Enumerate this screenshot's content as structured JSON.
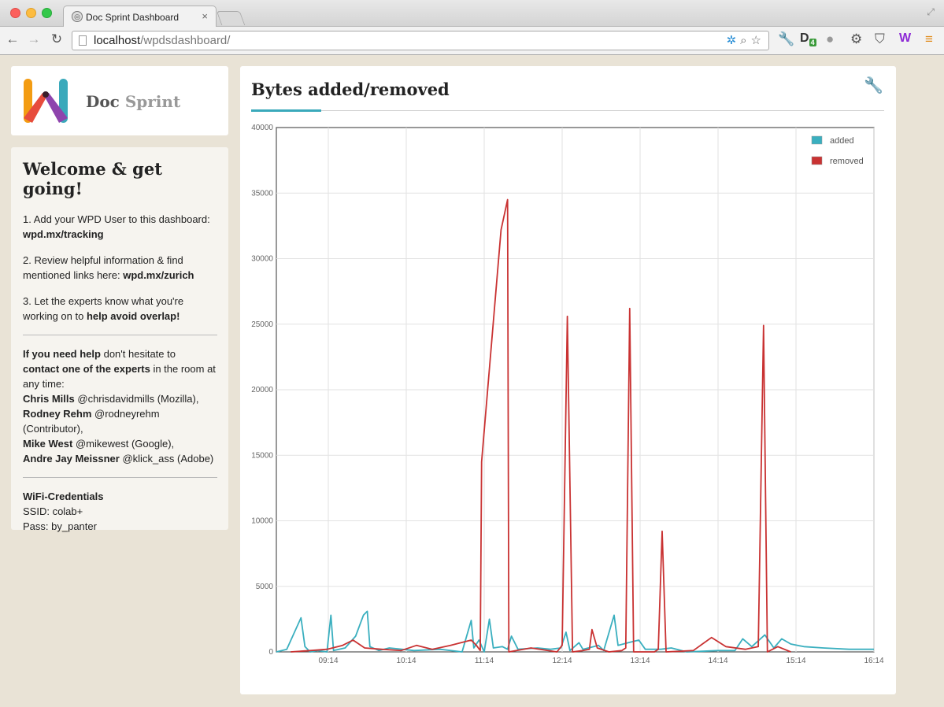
{
  "browser": {
    "tab_title": "Doc Sprint Dashboard",
    "close_glyph": "×",
    "url_host": "localhost",
    "url_path": "/wpdsdashboard/",
    "extension_badge": "4"
  },
  "logo": {
    "word1": "Doc",
    "word2": "Sprint",
    "colors": [
      "#f39c12",
      "#e74c3c",
      "#8e44ad",
      "#3aa9bb"
    ]
  },
  "welcome": {
    "title": "Welcome & get going!",
    "step1_text": "1. Add your WPD User to this dashboard:",
    "step1_link": "wpd.mx/tracking",
    "step2_text": "2. Review helpful information & find mentioned links here:",
    "step2_link": "wpd.mx/zurich",
    "step3_text": "3. Let the experts know what you're working on to",
    "step3_bold": "help avoid overlap!",
    "help_bold1": "If you need help",
    "help_text1": "don't hesitate to",
    "help_bold2": "contact one of the experts",
    "help_text2": "in the room at any time:",
    "experts": [
      {
        "name": "Chris Mills",
        "detail": "@chrisdavidmills (Mozilla),"
      },
      {
        "name": "Rodney Rehm",
        "detail": "@rodneyrehm (Contributor),"
      },
      {
        "name": "Mike West",
        "detail": "@mikewest (Google),"
      },
      {
        "name": "Andre Jay Meissner",
        "detail": "@klick_ass (Adobe)"
      }
    ],
    "wifi_title": "WiFi-Credentials",
    "wifi_ssid": "SSID: colab+",
    "wifi_pass": "Pass: by_panter"
  },
  "chart_panel": {
    "title": "Bytes added/removed"
  },
  "chart_data": {
    "type": "line",
    "title": "Bytes added/removed",
    "xlabel": "",
    "ylabel": "",
    "ylim": [
      0,
      40000
    ],
    "xlim": [
      "08:34",
      "16:14"
    ],
    "yticks": [
      0,
      5000,
      10000,
      15000,
      20000,
      25000,
      30000,
      35000,
      40000
    ],
    "xticks": [
      "09:14",
      "10:14",
      "11:14",
      "12:14",
      "13:14",
      "14:14",
      "15:14",
      "16:14"
    ],
    "grid": true,
    "legend_position": "top-right",
    "series": [
      {
        "name": "added",
        "color": "#3aafbf",
        "points": [
          [
            "08:34",
            0
          ],
          [
            "08:42",
            200
          ],
          [
            "08:53",
            2600
          ],
          [
            "08:56",
            400
          ],
          [
            "09:00",
            0
          ],
          [
            "09:06",
            100
          ],
          [
            "09:13",
            0
          ],
          [
            "09:16",
            2800
          ],
          [
            "09:18",
            100
          ],
          [
            "09:27",
            300
          ],
          [
            "09:35",
            1200
          ],
          [
            "09:41",
            2800
          ],
          [
            "09:44",
            3100
          ],
          [
            "09:46",
            400
          ],
          [
            "09:53",
            100
          ],
          [
            "10:01",
            300
          ],
          [
            "10:20",
            100
          ],
          [
            "10:40",
            200
          ],
          [
            "10:57",
            0
          ],
          [
            "11:04",
            2400
          ],
          [
            "11:06",
            300
          ],
          [
            "11:10",
            900
          ],
          [
            "11:14",
            0
          ],
          [
            "11:18",
            2500
          ],
          [
            "11:21",
            300
          ],
          [
            "11:28",
            400
          ],
          [
            "11:32",
            200
          ],
          [
            "11:35",
            1200
          ],
          [
            "11:40",
            200
          ],
          [
            "11:55",
            300
          ],
          [
            "12:05",
            200
          ],
          [
            "12:13",
            300
          ],
          [
            "12:17",
            1500
          ],
          [
            "12:20",
            100
          ],
          [
            "12:27",
            700
          ],
          [
            "12:30",
            200
          ],
          [
            "12:42",
            500
          ],
          [
            "12:46",
            100
          ],
          [
            "12:54",
            2800
          ],
          [
            "12:57",
            500
          ],
          [
            "13:05",
            700
          ],
          [
            "13:13",
            900
          ],
          [
            "13:18",
            200
          ],
          [
            "13:30",
            200
          ],
          [
            "13:38",
            300
          ],
          [
            "13:50",
            0
          ],
          [
            "14:14",
            100
          ],
          [
            "14:27",
            100
          ],
          [
            "14:33",
            1000
          ],
          [
            "14:40",
            400
          ],
          [
            "14:50",
            1300
          ],
          [
            "14:57",
            300
          ],
          [
            "15:03",
            1000
          ],
          [
            "15:10",
            600
          ],
          [
            "15:20",
            400
          ],
          [
            "15:35",
            300
          ],
          [
            "15:55",
            200
          ],
          [
            "16:14",
            200
          ]
        ]
      },
      {
        "name": "removed",
        "color": "#c93232",
        "points": [
          [
            "08:45",
            0
          ],
          [
            "09:00",
            100
          ],
          [
            "09:13",
            200
          ],
          [
            "09:25",
            500
          ],
          [
            "09:33",
            900
          ],
          [
            "09:42",
            300
          ],
          [
            "09:55",
            200
          ],
          [
            "10:10",
            100
          ],
          [
            "10:22",
            500
          ],
          [
            "10:34",
            200
          ],
          [
            "10:48",
            500
          ],
          [
            "11:04",
            900
          ],
          [
            "11:08",
            500
          ],
          [
            "11:11",
            100
          ],
          [
            "11:12",
            14500
          ],
          [
            "11:27",
            32200
          ],
          [
            "11:32",
            34500
          ],
          [
            "11:33",
            0
          ],
          [
            "11:50",
            300
          ],
          [
            "12:10",
            0
          ],
          [
            "12:14",
            500
          ],
          [
            "12:18",
            25600
          ],
          [
            "12:22",
            0
          ],
          [
            "12:30",
            100
          ],
          [
            "12:35",
            200
          ],
          [
            "12:37",
            1700
          ],
          [
            "12:41",
            300
          ],
          [
            "12:50",
            0
          ],
          [
            "13:00",
            100
          ],
          [
            "13:03",
            300
          ],
          [
            "13:06",
            26200
          ],
          [
            "13:09",
            0
          ],
          [
            "13:25",
            0
          ],
          [
            "13:28",
            200
          ],
          [
            "13:31",
            9200
          ],
          [
            "13:34",
            0
          ],
          [
            "13:55",
            100
          ],
          [
            "14:09",
            1100
          ],
          [
            "14:20",
            400
          ],
          [
            "14:35",
            200
          ],
          [
            "14:45",
            400
          ],
          [
            "14:49",
            24900
          ],
          [
            "14:52",
            0
          ],
          [
            "15:00",
            400
          ],
          [
            "15:10",
            0
          ]
        ]
      }
    ]
  }
}
